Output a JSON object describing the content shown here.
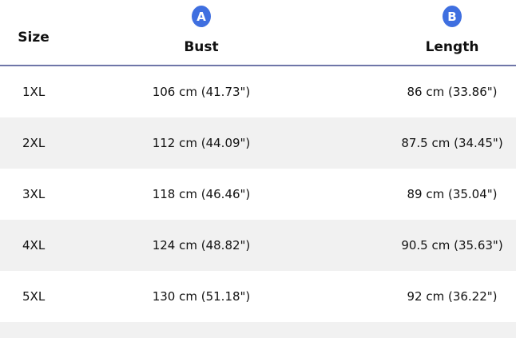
{
  "header": {
    "size": "Size",
    "bust": "Bust",
    "length": "Length",
    "badge_a": "A",
    "badge_b": "B",
    "badge_color": "#3f6fe0"
  },
  "rows": [
    {
      "size": "1XL",
      "bust": "106 cm (41.73\")",
      "length": "86 cm (33.86\")"
    },
    {
      "size": "2XL",
      "bust": "112 cm (44.09\")",
      "length": "87.5 cm (34.45\")"
    },
    {
      "size": "3XL",
      "bust": "118 cm (46.46\")",
      "length": "89 cm (35.04\")"
    },
    {
      "size": "4XL",
      "bust": "124 cm (48.82\")",
      "length": "90.5 cm (35.63\")"
    },
    {
      "size": "5XL",
      "bust": "130 cm (51.18\")",
      "length": "92 cm (36.22\")"
    }
  ]
}
